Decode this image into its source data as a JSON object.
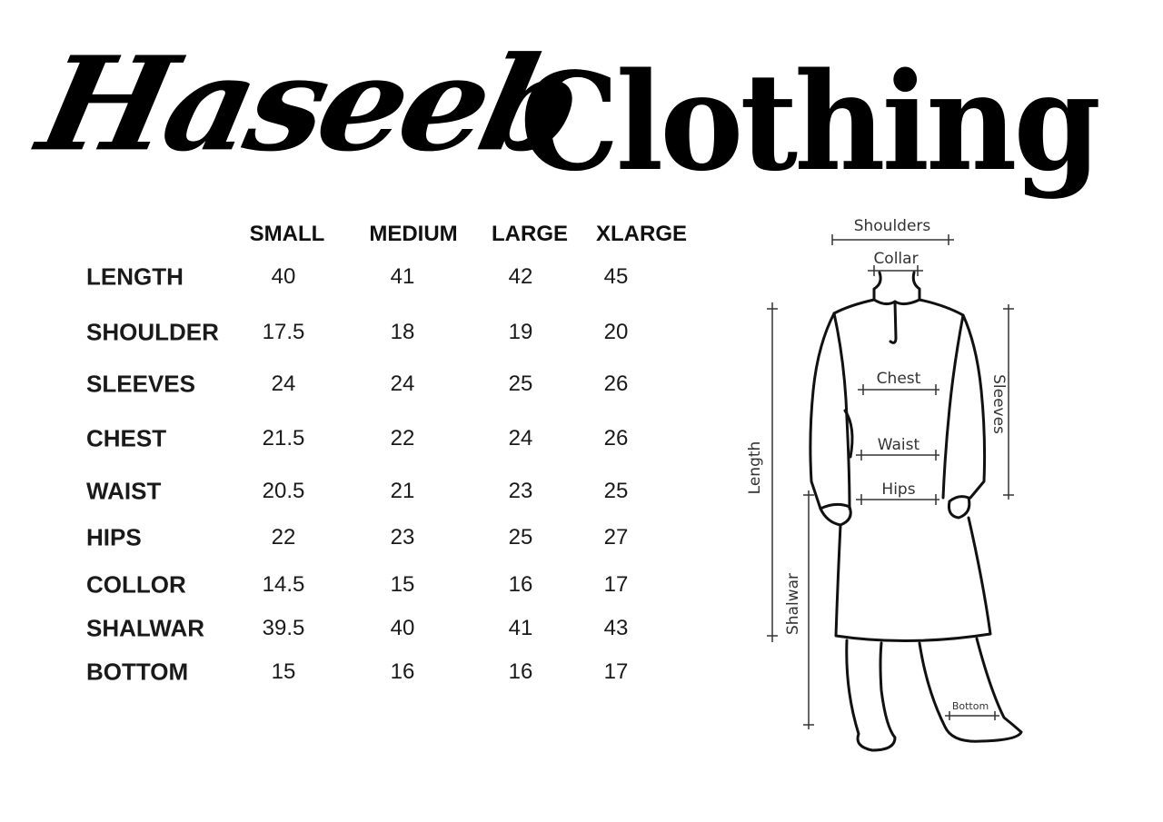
{
  "brand": {
    "script_word": "Haseeb",
    "serif_word": "Clothing"
  },
  "table": {
    "columns": [
      "SMALL",
      "MEDIUM",
      "LARGE",
      "XLARGE"
    ],
    "rows": [
      {
        "label": "LENGTH",
        "values": [
          "40",
          "41",
          "42",
          "45"
        ]
      },
      {
        "label": "SHOULDER",
        "values": [
          "17.5",
          "18",
          "19",
          "20"
        ]
      },
      {
        "label": "SLEEVES",
        "values": [
          "24",
          "24",
          "25",
          "26"
        ]
      },
      {
        "label": "CHEST",
        "values": [
          "21.5",
          "22",
          "24",
          "26"
        ]
      },
      {
        "label": "WAIST",
        "values": [
          "20.5",
          "21",
          "23",
          "25"
        ]
      },
      {
        "label": "HIPS",
        "values": [
          "22",
          "23",
          "25",
          "27"
        ]
      },
      {
        "label": "COLLOR",
        "values": [
          "14.5",
          "15",
          "16",
          "17"
        ]
      },
      {
        "label": "SHALWAR",
        "values": [
          "39.5",
          "40",
          "41",
          "43"
        ]
      },
      {
        "label": "BOTTOM",
        "values": [
          "15",
          "16",
          "16",
          "17"
        ]
      }
    ]
  },
  "diagram": {
    "labels": {
      "shoulders": "Shoulders",
      "collar": "Collar",
      "chest": "Chest",
      "waist": "Waist",
      "hips": "Hips",
      "length": "Length",
      "sleeves": "Sleeves",
      "shalwar": "Shalwar",
      "bottom": "Bottom"
    }
  }
}
